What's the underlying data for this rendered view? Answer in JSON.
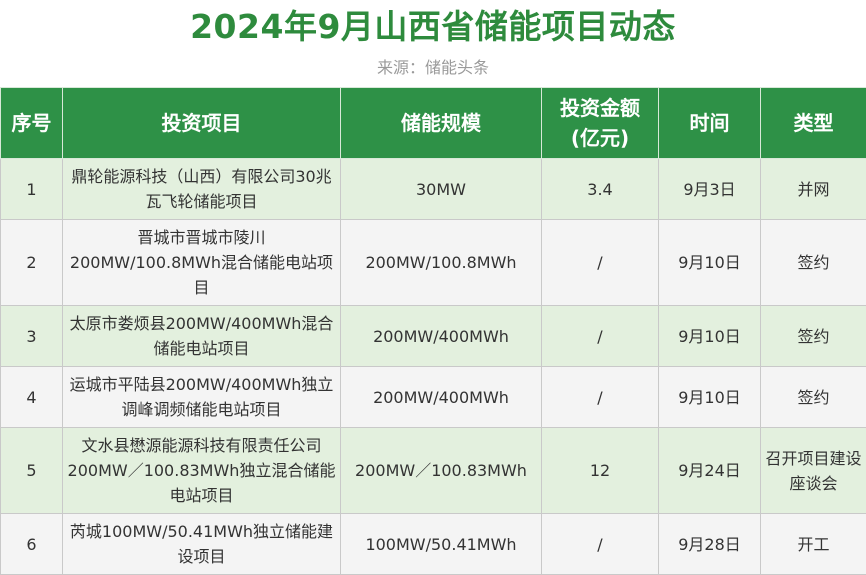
{
  "title": "2024年9月山西省储能项目动态",
  "source": "来源：储能头条",
  "headers": {
    "index": "序号",
    "project": "投资项目",
    "scale": "储能规模",
    "investment": "投资金额\n(亿元)",
    "time": "时间",
    "type": "类型"
  },
  "rows": [
    {
      "index": "1",
      "project": "鼎轮能源科技（山西）有限公司30兆瓦飞轮储能项目",
      "scale": "30MW",
      "investment": "3.4",
      "time": "9月3日",
      "type": "并网"
    },
    {
      "index": "2",
      "project": "晋城市晋城市陵川200MW/100.8MWh混合储能电站项目",
      "scale": "200MW/100.8MWh",
      "investment": "/",
      "time": "9月10日",
      "type": "签约"
    },
    {
      "index": "3",
      "project": "太原市娄烦县200MW/400MWh混合储能电站项目",
      "scale": "200MW/400MWh",
      "investment": "/",
      "time": "9月10日",
      "type": "签约"
    },
    {
      "index": "4",
      "project": "运城市平陆县200MW/400MWh独立调峰调频储能电站项目",
      "scale": "200MW/400MWh",
      "investment": "/",
      "time": "9月10日",
      "type": "签约"
    },
    {
      "index": "5",
      "project": "文水县懋源能源科技有限责任公司200MW／100.83MWh独立混合储能电站项目",
      "scale": "200MW／100.83MWh",
      "investment": "12",
      "time": "9月24日",
      "type": "召开项目建设座谈会"
    },
    {
      "index": "6",
      "project": "芮城100MW/50.41MWh独立储能建设项目",
      "scale": "100MW/50.41MWh",
      "investment": "/",
      "time": "9月28日",
      "type": "开工"
    }
  ],
  "colors": {
    "title": "#2e8b3d",
    "header_bg": "#2e9147",
    "row_green": "#e3f0de",
    "row_gray": "#f4f4f4"
  }
}
